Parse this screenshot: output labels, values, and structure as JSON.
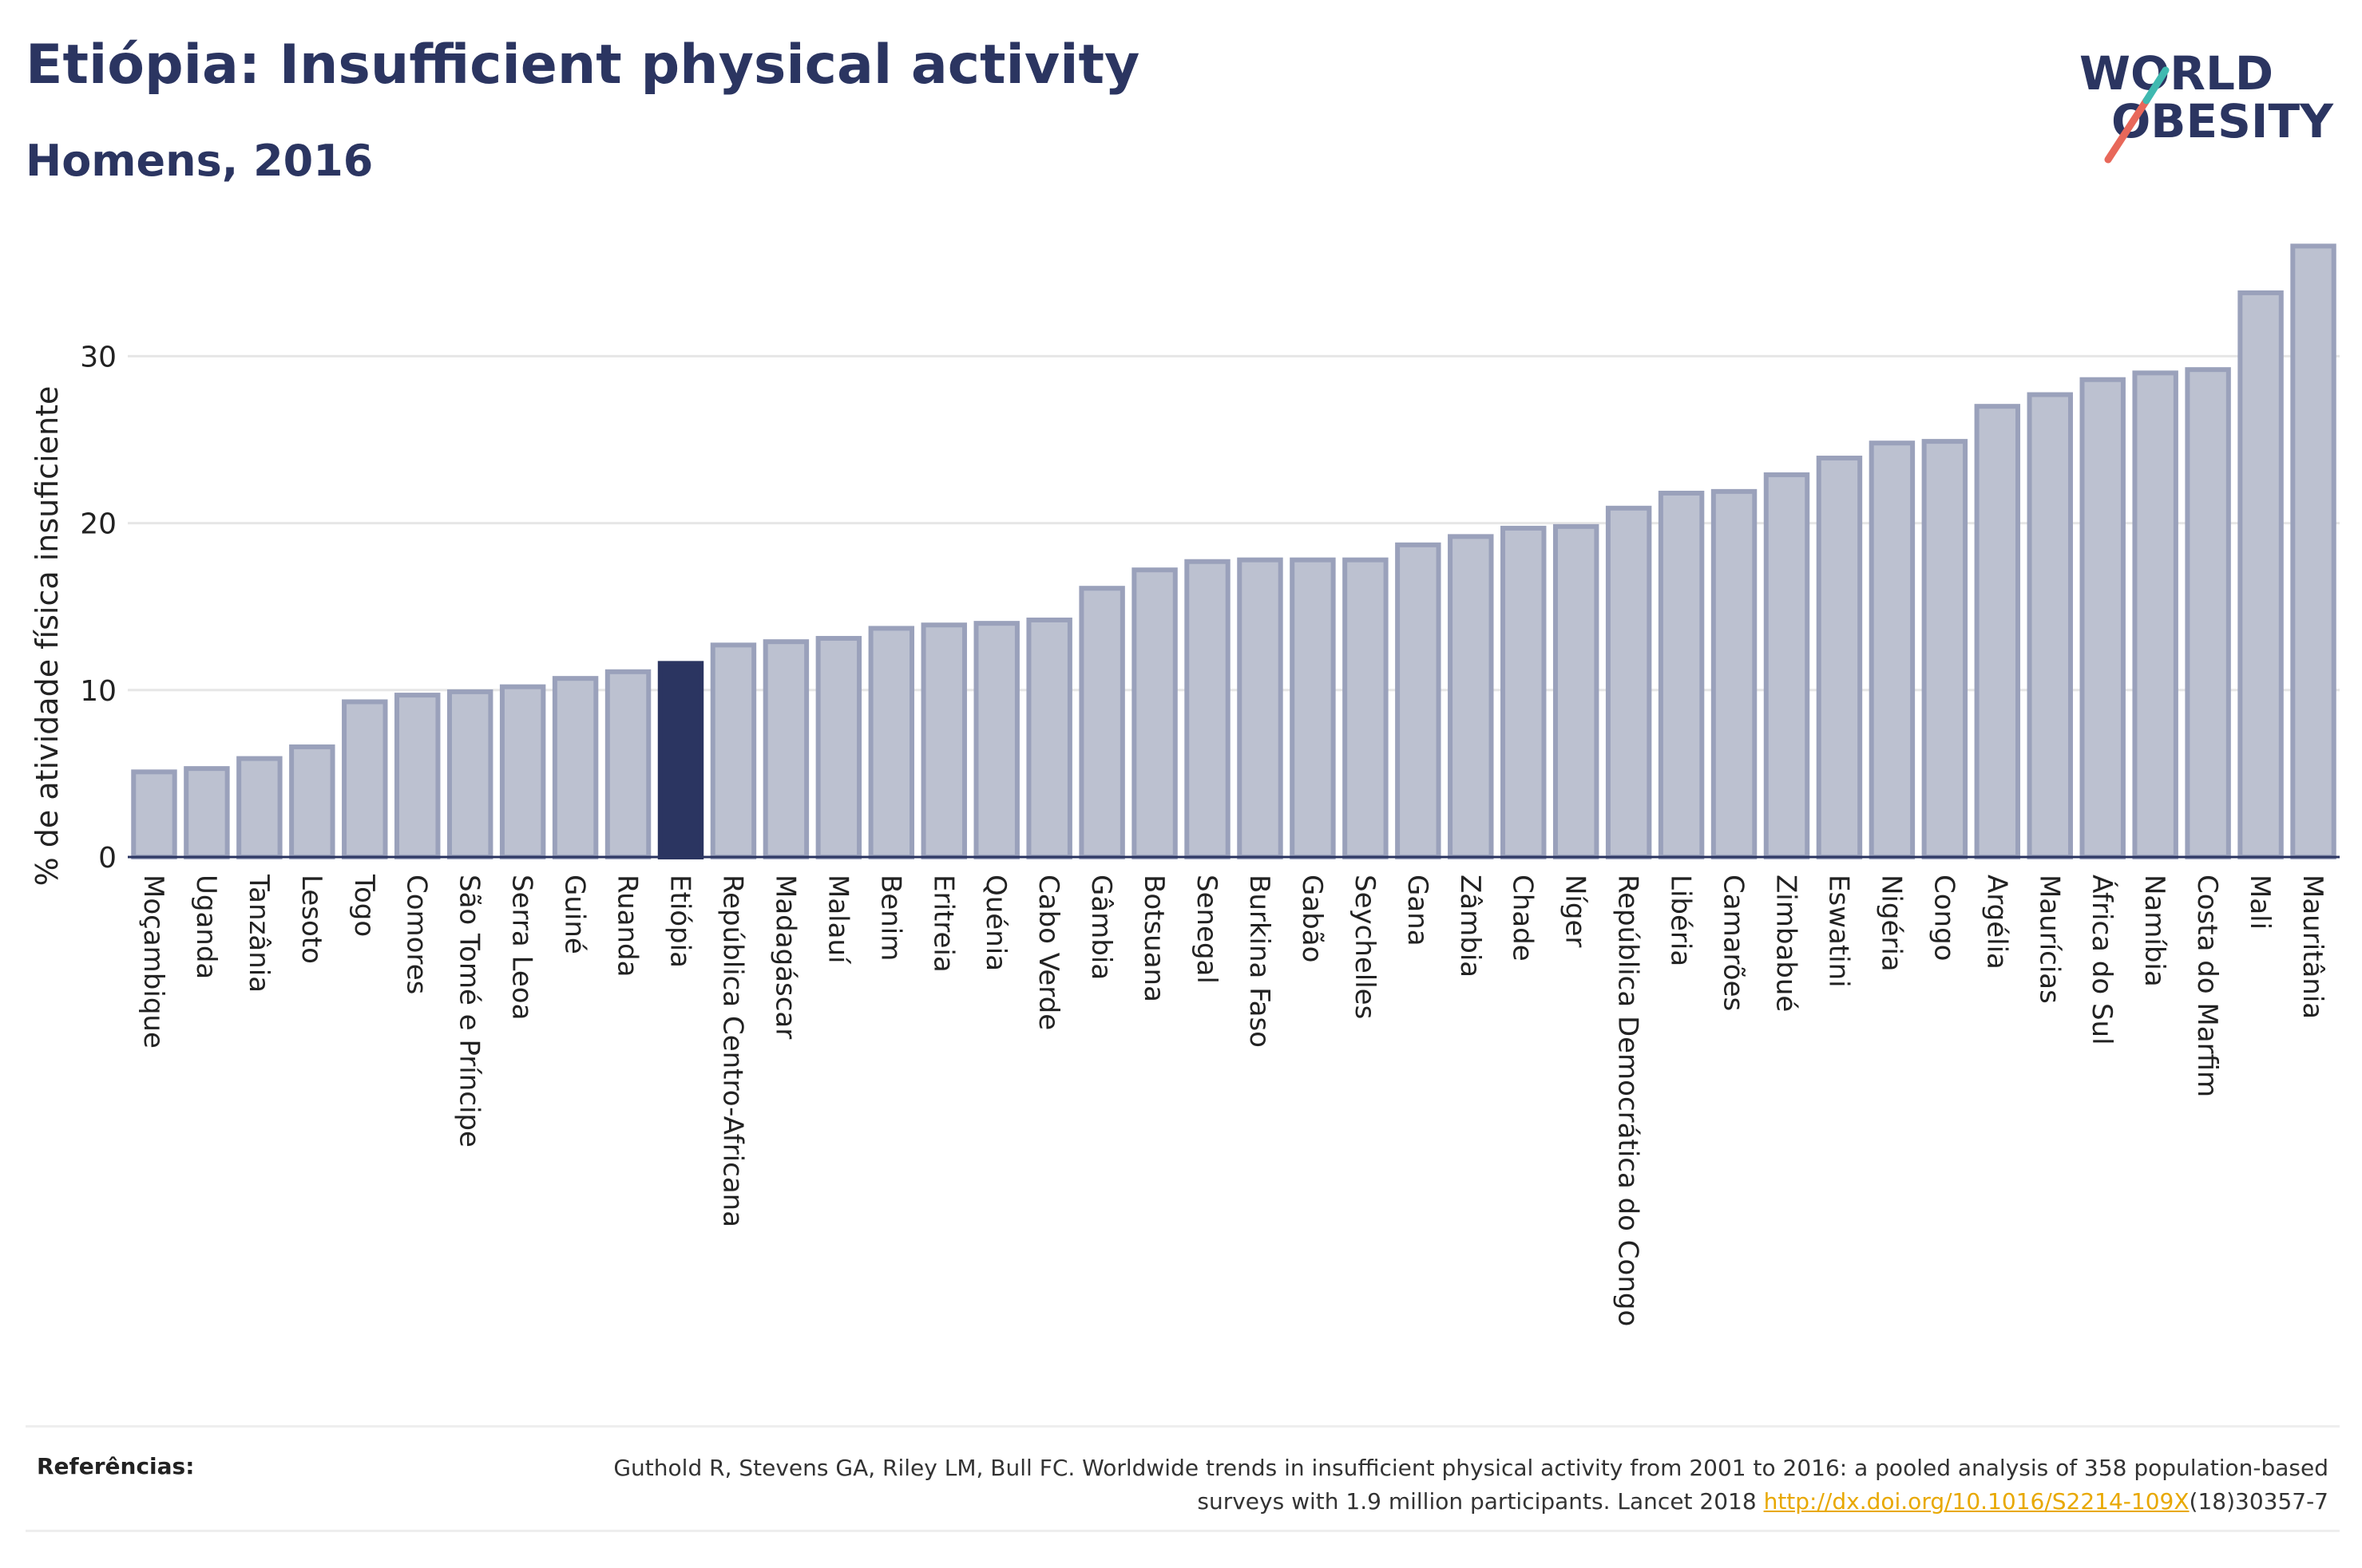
{
  "header": {
    "title": "Etiópia: Insufficient physical activity",
    "subtitle": "Homens, 2016"
  },
  "logo": {
    "line1": "WORLD",
    "line2": "OBESITY"
  },
  "colors": {
    "text": "#2b3561",
    "bar": "#bcc1d0",
    "bar_stroke": "#9aa1bb",
    "highlight": "#2b3561",
    "link": "#e8a800",
    "logo_red": "#e8685a",
    "logo_teal": "#3fb9b0"
  },
  "chart_data": {
    "type": "bar",
    "ylabel": "% de atividade física insuficiente",
    "ylim": [
      0,
      37
    ],
    "yticks": [
      0,
      10,
      20,
      30
    ],
    "grid": true,
    "highlight": "Etiópia",
    "categories": [
      "Moçambique",
      "Uganda",
      "Tanzânia",
      "Lesoto",
      "Togo",
      "Comores",
      "São Tomé e Príncipe",
      "Serra Leoa",
      "Guiné",
      "Ruanda",
      "Etiópia",
      "República Centro-Africana",
      "Madagáscar",
      "Malauí",
      "Benim",
      "Eritreia",
      "Quénia",
      "Cabo Verde",
      "Gâmbia",
      "Botsuana",
      "Senegal",
      "Burkina Faso",
      "Gabão",
      "Seychelles",
      "Gana",
      "Zâmbia",
      "Chade",
      "Níger",
      "República Democrática do Congo",
      "Libéria",
      "Camarões",
      "Zimbabué",
      "Eswatini",
      "Nigéria",
      "Congo",
      "Argélia",
      "Maurícias",
      "África do Sul",
      "Namíbia",
      "Costa do Marfim",
      "Mali",
      "Mauritânia"
    ],
    "values": [
      5.1,
      5.3,
      5.9,
      6.6,
      9.3,
      9.7,
      9.9,
      10.2,
      10.7,
      11.1,
      11.6,
      12.7,
      12.9,
      13.1,
      13.7,
      13.9,
      14.0,
      14.2,
      16.1,
      17.2,
      17.7,
      17.8,
      17.8,
      17.8,
      18.7,
      19.2,
      19.7,
      19.8,
      20.9,
      21.8,
      21.9,
      22.9,
      23.9,
      24.8,
      24.9,
      27.0,
      27.7,
      28.6,
      29.0,
      29.2,
      33.8,
      36.6
    ]
  },
  "references": {
    "label": "Referências:",
    "text_before_link": "Guthold R, Stevens GA, Riley LM, Bull FC. Worldwide trends in insufficient physical activity from 2001 to 2016: a pooled analysis of 358 population-based surveys with 1.9 million participants. Lancet 2018 ",
    "link_text": "http://dx.doi.org/10.1016/S2214-109X",
    "text_after_link": "(18)30357-7"
  }
}
